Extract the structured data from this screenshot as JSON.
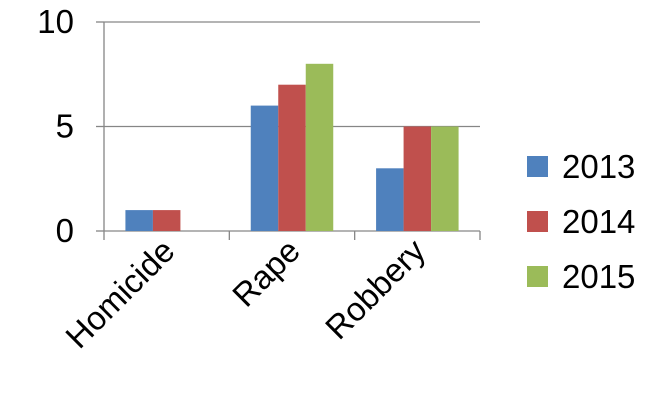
{
  "chart_data": {
    "type": "bar",
    "categories": [
      "Homicide",
      "Rape",
      "Robbery"
    ],
    "series": [
      {
        "name": "2013",
        "values": [
          1,
          6,
          3
        ],
        "color": "#4f81bd"
      },
      {
        "name": "2014",
        "values": [
          1,
          7,
          5
        ],
        "color": "#c0504d"
      },
      {
        "name": "2015",
        "values": [
          0,
          8,
          5
        ],
        "color": "#9bbb59"
      }
    ],
    "yticks": [
      "0",
      "5",
      "10"
    ],
    "ylim": [
      0,
      10
    ],
    "grid": true,
    "legend": "right",
    "title": "",
    "xlabel": "",
    "ylabel": ""
  }
}
